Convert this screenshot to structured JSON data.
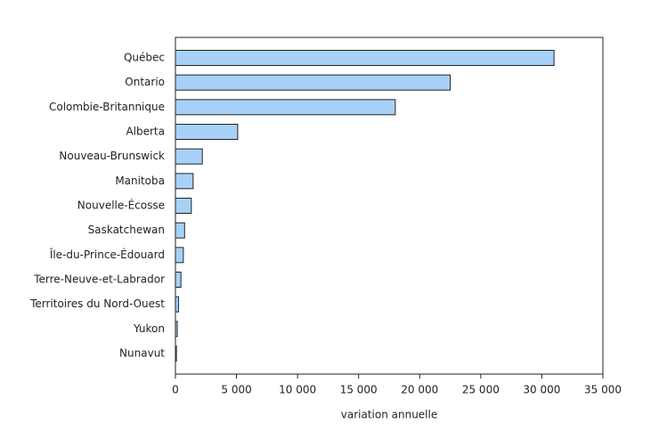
{
  "chart_data": {
    "type": "barh",
    "categories": [
      "Québec",
      "Ontario",
      "Colombie-Britannique",
      "Alberta",
      "Nouveau-Brunswick",
      "Manitoba",
      "Nouvelle-Écosse",
      "Saskatchewan",
      "Île-du-Prince-Édouard",
      "Terre-Neuve-et-Labrador",
      "Territoires du Nord-Ouest",
      "Yukon",
      "Nunavut"
    ],
    "values": [
      31000,
      22500,
      18000,
      5100,
      2200,
      1450,
      1300,
      750,
      650,
      450,
      250,
      150,
      80
    ],
    "color": "#a8d1f8",
    "xlabel": "variation annuelle",
    "xlim": [
      0,
      35000
    ],
    "xticks": [
      0,
      {
        "value": 5000,
        "label": "5 000"
      },
      {
        "value": 10000,
        "label": "10 000"
      },
      {
        "value": 15000,
        "label": "15 000"
      },
      {
        "value": 20000,
        "label": "20 000"
      },
      {
        "value": 25000,
        "label": "25 000"
      },
      {
        "value": 30000,
        "label": "30 000"
      },
      {
        "value": 35000,
        "label": "35 000"
      }
    ]
  }
}
